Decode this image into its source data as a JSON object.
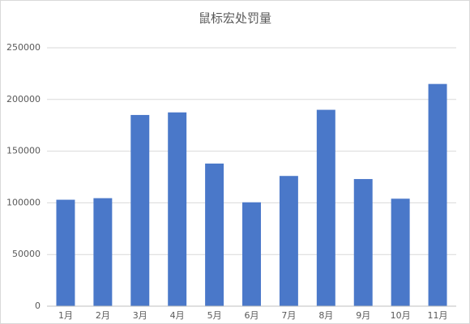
{
  "chart_data": {
    "type": "bar",
    "title": "鼠标宏处罚量",
    "categories": [
      "1月",
      "2月",
      "3月",
      "4月",
      "5月",
      "6月",
      "7月",
      "8月",
      "9月",
      "10月",
      "11月"
    ],
    "values": [
      103000,
      104500,
      185000,
      187500,
      138000,
      100500,
      126000,
      190000,
      123000,
      104000,
      215000
    ],
    "color": "#4a78c9",
    "ylim": [
      0,
      250000
    ],
    "yticks": [
      0,
      50000,
      100000,
      150000,
      200000,
      250000
    ],
    "grid": true
  }
}
